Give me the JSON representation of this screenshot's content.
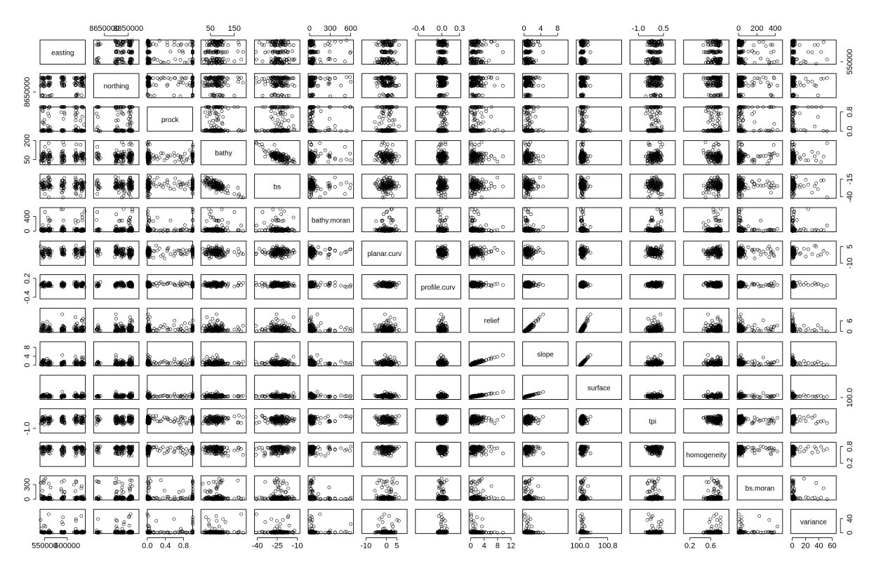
{
  "chart_data": {
    "type": "scatter",
    "kind": "scatterplot-matrix",
    "variables": [
      {
        "name": "easting",
        "range": [
          540000,
          640000
        ],
        "ticks": [
          550000,
          600000
        ],
        "tick_labels": [
          "550000",
          "600000"
        ]
      },
      {
        "name": "northing",
        "range": [
          8560000,
          8940000
        ],
        "ticks": [
          8650000,
          8850000
        ],
        "tick_labels": [
          "8650000",
          "8850000"
        ]
      },
      {
        "name": "prock",
        "range": [
          0,
          1
        ],
        "ticks": [
          0.0,
          0.4,
          0.8
        ],
        "tick_labels": [
          "0.0",
          "0.4",
          "0.8"
        ]
      },
      {
        "name": "bathy",
        "range": [
          10,
          200
        ],
        "ticks": [
          50,
          150
        ],
        "tick_labels": [
          "50",
          "150"
        ]
      },
      {
        "name": "bs",
        "range": [
          -42,
          -8
        ],
        "ticks": [
          -40,
          -25,
          -10
        ],
        "tick_labels": [
          "-40",
          "-25",
          "-10"
        ]
      },
      {
        "name": "bathy.moran",
        "range": [
          -20,
          640
        ],
        "ticks": [
          0,
          300,
          600
        ],
        "tick_labels": [
          "0",
          "300",
          "600"
        ]
      },
      {
        "name": "planar.curv",
        "range": [
          -12,
          10
        ],
        "ticks": [
          -10,
          0,
          5
        ],
        "tick_labels": [
          "-10",
          "0",
          "5"
        ]
      },
      {
        "name": "profile.curv",
        "range": [
          -0.45,
          0.32
        ],
        "ticks": [
          -0.4,
          0.0,
          0.3
        ],
        "tick_labels": [
          "-0.4",
          "0.0",
          "0.3"
        ]
      },
      {
        "name": "relief",
        "range": [
          -0.5,
          13
        ],
        "ticks": [
          0,
          4,
          8,
          12
        ],
        "tick_labels": [
          "0",
          "4",
          "8",
          "12"
        ]
      },
      {
        "name": "slope",
        "range": [
          -0.3,
          10.5
        ],
        "ticks": [
          0,
          4,
          8
        ],
        "tick_labels": [
          "0",
          "4",
          "8"
        ]
      },
      {
        "name": "surface",
        "range": [
          99.9,
          101.2
        ],
        "ticks": [
          100.0,
          100.8
        ],
        "tick_labels": [
          "100.0",
          "100.8"
        ]
      },
      {
        "name": "tpi",
        "range": [
          -1.5,
          1.2
        ],
        "ticks": [
          -1.0,
          0.5
        ],
        "tick_labels": [
          "-1.0",
          "0.5"
        ]
      },
      {
        "name": "homogeneity",
        "range": [
          0.08,
          0.95
        ],
        "ticks": [
          0.2,
          0.6
        ],
        "tick_labels": [
          "0.2",
          "0.6"
        ]
      },
      {
        "name": "bs.moran",
        "range": [
          -15,
          480
        ],
        "ticks": [
          0,
          200,
          400
        ],
        "tick_labels": [
          "0",
          "200",
          "400"
        ]
      },
      {
        "name": "variance",
        "range": [
          -2,
          66
        ],
        "ticks": [
          0,
          20,
          40,
          60
        ],
        "tick_labels": [
          "0",
          "20",
          "40",
          "60"
        ]
      }
    ],
    "axes": {
      "top_columns": [
        1,
        3,
        5,
        7,
        9,
        11,
        13
      ],
      "bottom_columns": [
        0,
        2,
        4,
        6,
        8,
        10,
        12,
        14
      ],
      "left_rows": [
        1,
        3,
        5,
        7,
        9,
        11,
        13
      ],
      "right_rows": [
        0,
        2,
        4,
        6,
        8,
        10,
        12,
        14
      ],
      "left_ticks": {
        "1": {
          "ticks": [
            8650000
          ],
          "tick_labels": [
            "8650000"
          ]
        },
        "3": {
          "ticks": [
            50,
            200
          ],
          "tick_labels": [
            "50",
            "200"
          ]
        },
        "5": {
          "ticks": [
            0,
            400
          ],
          "tick_labels": [
            "0",
            "400"
          ]
        },
        "7": {
          "ticks": [
            -0.4,
            0.2
          ],
          "tick_labels": [
            "-0.4",
            "0.2"
          ]
        },
        "9": {
          "ticks": [
            0,
            4,
            8
          ],
          "tick_labels": [
            "0",
            "4",
            "8"
          ]
        },
        "11": {
          "ticks": [
            -1.0
          ],
          "tick_labels": [
            "-1.0"
          ]
        },
        "13": {
          "ticks": [
            0,
            300
          ],
          "tick_labels": [
            "0",
            "300"
          ]
        }
      },
      "right_ticks": {
        "0": {
          "ticks": [
            550000
          ],
          "tick_labels": [
            "550000"
          ]
        },
        "2": {
          "ticks": [
            0.0,
            0.8
          ],
          "tick_labels": [
            "0.0",
            "0.8"
          ]
        },
        "4": {
          "ticks": [
            -40,
            -15
          ],
          "tick_labels": [
            "-40",
            "-15"
          ]
        },
        "6": {
          "ticks": [
            -10,
            5
          ],
          "tick_labels": [
            "-10",
            "5"
          ]
        },
        "8": {
          "ticks": [
            0,
            6
          ],
          "tick_labels": [
            "0",
            "6"
          ]
        },
        "10": {
          "ticks": [
            100.0
          ],
          "tick_labels": [
            "100.0"
          ]
        },
        "12": {
          "ticks": [
            0.2,
            0.8
          ],
          "tick_labels": [
            "0.2",
            "0.8"
          ]
        },
        "14": {
          "ticks": [
            0,
            40
          ],
          "tick_labels": [
            "0",
            "40"
          ]
        }
      }
    },
    "marker": "open-circle",
    "n_points": 140,
    "grid": false,
    "legend": "none",
    "colors": {
      "points": "#000000",
      "frame": "#000000",
      "background": "#ffffff"
    }
  }
}
